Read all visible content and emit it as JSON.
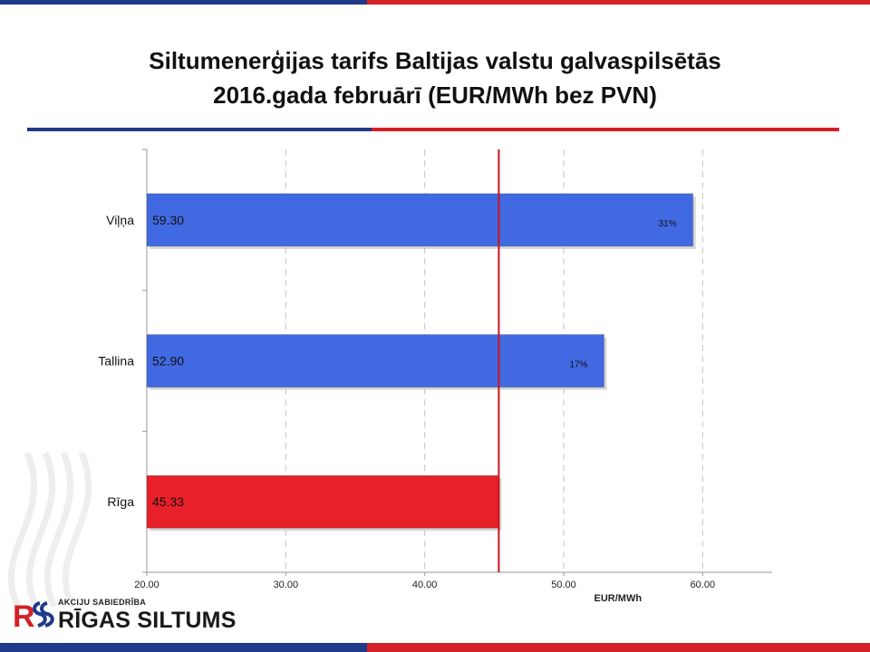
{
  "header": {
    "title_line1": "Siltumenerģijas tarifs Baltijas valstu galvaspilsētās",
    "title_line2": "2016.gada februārī (EUR/MWh bez PVN)"
  },
  "chart_data": {
    "type": "bar",
    "orientation": "horizontal",
    "categories": [
      "Viļņa",
      "Tallina",
      "Rīga"
    ],
    "values": [
      59.3,
      52.9,
      45.33
    ],
    "value_labels": [
      "59.30",
      "52.90",
      "45.33"
    ],
    "pct_labels": [
      "31%",
      "17%",
      ""
    ],
    "bar_colors": [
      "#4169e1",
      "#4169e1",
      "#e8202a"
    ],
    "xlabel": "EUR/MWh",
    "xlim": [
      20,
      65
    ],
    "xticks": [
      20,
      30,
      40,
      50,
      60
    ],
    "xtick_labels": [
      "20.00",
      "30.00",
      "40.00",
      "50.00",
      "60.00"
    ],
    "reference_value": 45.33,
    "reference_color": "#c8141e",
    "grid": "vertical dashed"
  },
  "logo": {
    "subtitle": "AKCIJU SABIEDRĪBA",
    "name": "RĪGAS SILTUMS"
  }
}
